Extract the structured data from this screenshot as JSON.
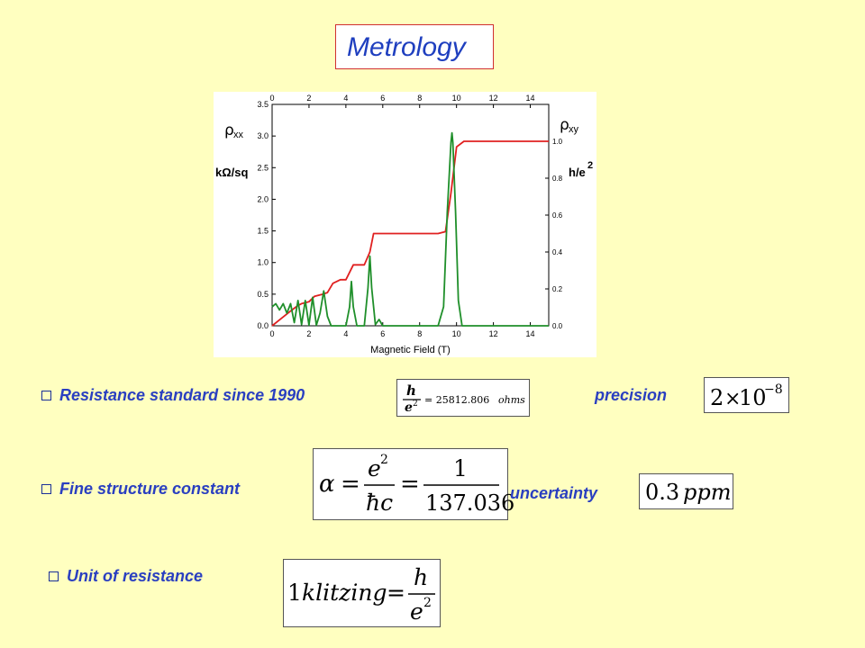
{
  "title": "Metrology",
  "colors": {
    "background": "#ffffc0",
    "title_text": "#1f3fbf",
    "bullet_text": "#2a3fc0",
    "rho_xy": "#e02020",
    "rho_xx": "#1f8f2a"
  },
  "chart_data": {
    "type": "line",
    "xlabel": "Magnetic Field (T)",
    "top_ticks": [
      "0",
      "2",
      "4",
      "6",
      "8",
      "10",
      "12",
      "14"
    ],
    "bottom_ticks": [
      "0",
      "2",
      "4",
      "6",
      "8",
      "10",
      "12",
      "14"
    ],
    "left_ticks": [
      "0.0",
      "0.5",
      "1.0",
      "1.5",
      "2.0",
      "2.5",
      "3.0",
      "3.5"
    ],
    "right_ticks": [
      "0.0",
      "0.2",
      "0.4",
      "0.6",
      "0.8",
      "1.0"
    ],
    "left_label_main": "ρ",
    "left_label_sub": "xx",
    "left_units": "kΩ/sq",
    "right_label_main": "ρ",
    "right_label_sub": "xy",
    "right_units": "h/e",
    "right_units_sup": "2",
    "xlim": [
      0,
      15
    ],
    "ylim_left": [
      0,
      3.5
    ],
    "ylim_right": [
      0,
      1.2
    ],
    "series": [
      {
        "color": "#e02020",
        "axis": "right",
        "points": [
          [
            0,
            0
          ],
          [
            0.5,
            0.04
          ],
          [
            1,
            0.08
          ],
          [
            1.4,
            0.11
          ],
          [
            1.6,
            0.12
          ],
          [
            2,
            0.13
          ],
          [
            2.3,
            0.16
          ],
          [
            2.7,
            0.17
          ],
          [
            3,
            0.18
          ],
          [
            3.3,
            0.23
          ],
          [
            3.7,
            0.25
          ],
          [
            4,
            0.25
          ],
          [
            4.4,
            0.33
          ],
          [
            5,
            0.33
          ],
          [
            5.3,
            0.4
          ],
          [
            5.5,
            0.5
          ],
          [
            9,
            0.5
          ],
          [
            9.4,
            0.51
          ],
          [
            9.7,
            0.72
          ],
          [
            10,
            0.97
          ],
          [
            10.4,
            1.0
          ],
          [
            15,
            1.0
          ]
        ]
      },
      {
        "color": "#1f8f2a",
        "axis": "left",
        "points": [
          [
            0,
            0.3
          ],
          [
            0.2,
            0.35
          ],
          [
            0.4,
            0.25
          ],
          [
            0.6,
            0.35
          ],
          [
            0.8,
            0.2
          ],
          [
            1.0,
            0.35
          ],
          [
            1.2,
            0.05
          ],
          [
            1.4,
            0.4
          ],
          [
            1.6,
            0.02
          ],
          [
            1.8,
            0.4
          ],
          [
            2.0,
            0.01
          ],
          [
            2.2,
            0.45
          ],
          [
            2.4,
            0.01
          ],
          [
            2.6,
            0.2
          ],
          [
            2.8,
            0.55
          ],
          [
            3.0,
            0.15
          ],
          [
            3.2,
            0
          ],
          [
            4.0,
            0
          ],
          [
            4.2,
            0.3
          ],
          [
            4.3,
            0.7
          ],
          [
            4.4,
            0.3
          ],
          [
            4.6,
            0
          ],
          [
            5.0,
            0
          ],
          [
            5.2,
            0.6
          ],
          [
            5.3,
            1.1
          ],
          [
            5.4,
            0.6
          ],
          [
            5.6,
            0.02
          ],
          [
            5.8,
            0.1
          ],
          [
            6.0,
            0
          ],
          [
            9.0,
            0
          ],
          [
            9.3,
            0.3
          ],
          [
            9.5,
            1.8
          ],
          [
            9.7,
            2.9
          ],
          [
            9.75,
            3.05
          ],
          [
            9.8,
            2.9
          ],
          [
            9.95,
            1.8
          ],
          [
            10.1,
            0.4
          ],
          [
            10.3,
            0
          ],
          [
            15,
            0
          ]
        ]
      }
    ]
  },
  "items": [
    {
      "label": "Resistance standard since 1990",
      "extra": "precision",
      "eq1": {
        "frac_num": "h",
        "frac_den": "e",
        "den_sup": "2",
        "rest": "= 25812.806",
        "unit": "ohms"
      },
      "eq2": {
        "mant": "2",
        "times": "×",
        "base": "10",
        "exp": "−8"
      }
    },
    {
      "label": "Fine structure constant",
      "extra": "uncertainty",
      "eq1": {
        "lhs": "α",
        "eq": "=",
        "num1": "e",
        "num1_sup": "2",
        "den1": "ħc",
        "num2": "1",
        "den2": "137.036"
      },
      "eq2": {
        "value": "0.3",
        "unit": "ppm"
      }
    },
    {
      "label": "Unit of resistance",
      "eq1": {
        "lhs": "1",
        "word": "klitzing",
        "eq": "=",
        "num": "h",
        "den": "e",
        "den_sup": "2"
      }
    }
  ]
}
